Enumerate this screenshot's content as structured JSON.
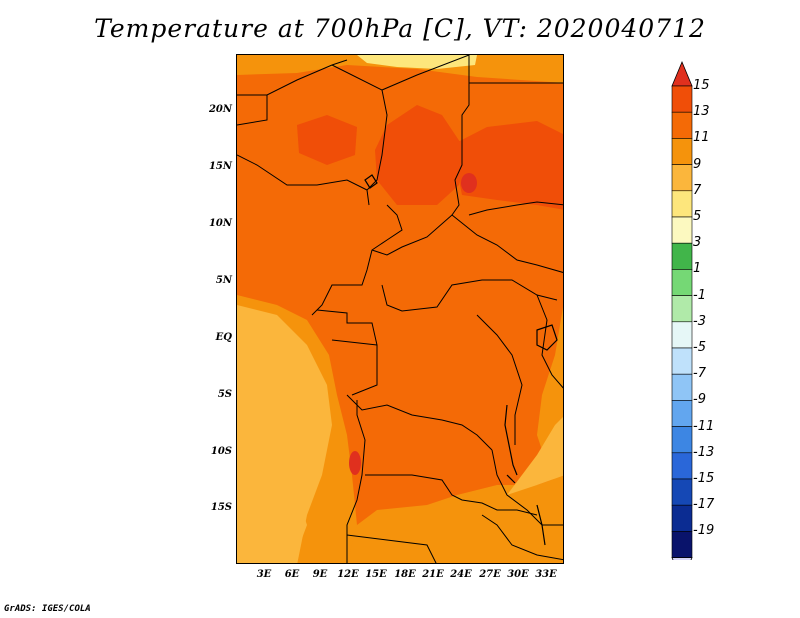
{
  "title": "Temperature at 700hPa [C], VT: 2020040712",
  "credit": "GrADS: IGES/COLA",
  "y_axis_labels": [
    "20N",
    "15N",
    "10N",
    "5N",
    "EQ",
    "5S",
    "10S",
    "15S"
  ],
  "x_axis_labels": [
    "3E",
    "6E",
    "9E",
    "12E",
    "15E",
    "18E",
    "21E",
    "24E",
    "27E",
    "30E",
    "33E"
  ],
  "colorbar": {
    "labels": [
      "15",
      "13",
      "11",
      "9",
      "7",
      "5",
      "3",
      "1",
      "-1",
      "-3",
      "-5",
      "-7",
      "-9",
      "-11",
      "-13",
      "-15",
      "-17",
      "-19"
    ],
    "colors": [
      "#e0301e",
      "#f04e08",
      "#f46a06",
      "#f5930c",
      "#fbb63c",
      "#fde67c",
      "#fcf9c0",
      "#41b54a",
      "#75d875",
      "#b0eaa9",
      "#e6f7f7",
      "#bfe1fb",
      "#8fc5f6",
      "#62a6ef",
      "#3d86e3",
      "#2a67d9",
      "#1548b5",
      "#0b2c92",
      "#09136b",
      "#d6d6f5"
    ]
  },
  "map_colors": {
    "c9": "#f5930c",
    "c7": "#fbb63c",
    "c5": "#fde67c",
    "c11": "#f46a06",
    "c13": "#f04e08",
    "c15": "#e0301e"
  }
}
